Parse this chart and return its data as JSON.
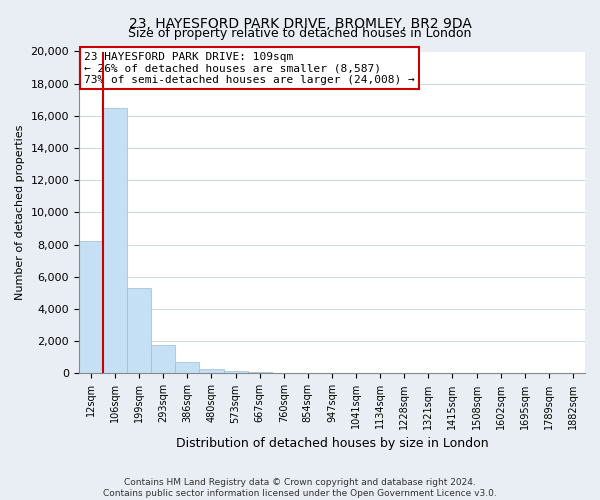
{
  "title": "23, HAYESFORD PARK DRIVE, BROMLEY, BR2 9DA",
  "subtitle": "Size of property relative to detached houses in London",
  "xlabel": "Distribution of detached houses by size in London",
  "ylabel": "Number of detached properties",
  "bar_labels": [
    "12sqm",
    "106sqm",
    "199sqm",
    "293sqm",
    "386sqm",
    "480sqm",
    "573sqm",
    "667sqm",
    "760sqm",
    "854sqm",
    "947sqm",
    "1041sqm",
    "1134sqm",
    "1228sqm",
    "1321sqm",
    "1415sqm",
    "1508sqm",
    "1602sqm",
    "1695sqm",
    "1789sqm",
    "1882sqm"
  ],
  "bar_heights": [
    8200,
    16500,
    5300,
    1750,
    700,
    250,
    150,
    120,
    0,
    0,
    0,
    0,
    0,
    0,
    0,
    0,
    0,
    0,
    0,
    0,
    0
  ],
  "bar_color": "#c5dff5",
  "bar_edge_color": "#9bbdd8",
  "ylim": [
    0,
    20000
  ],
  "yticks": [
    0,
    2000,
    4000,
    6000,
    8000,
    10000,
    12000,
    14000,
    16000,
    18000,
    20000
  ],
  "annotation_title": "23 HAYESFORD PARK DRIVE: 109sqm",
  "annotation_line1": "← 26% of detached houses are smaller (8,587)",
  "annotation_line2": "73% of semi-detached houses are larger (24,008) →",
  "annotation_box_color": "#ffffff",
  "annotation_box_edge": "#cc0000",
  "vline_color": "#cc0000",
  "vline_x": 0.5,
  "footer1": "Contains HM Land Registry data © Crown copyright and database right 2024.",
  "footer2": "Contains public sector information licensed under the Open Government Licence v3.0.",
  "bg_color": "#e8eef4",
  "plot_bg_color": "#ffffff",
  "grid_color": "#c8d8e8"
}
